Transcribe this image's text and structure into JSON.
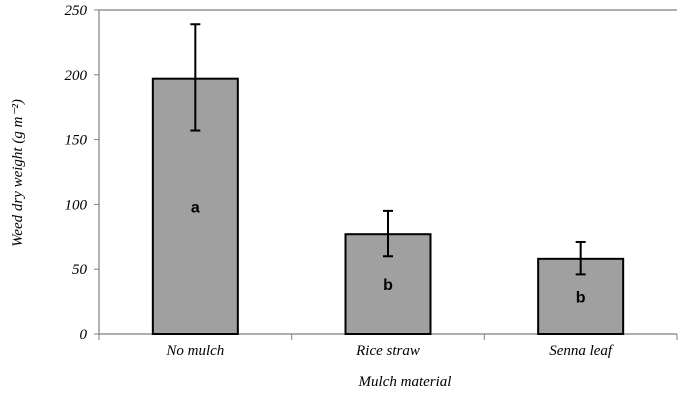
{
  "chart_data": {
    "type": "bar",
    "categories": [
      "No mulch",
      "Rice straw",
      "Senna leaf"
    ],
    "values": [
      197,
      77,
      58
    ],
    "error_upper": [
      239,
      95,
      71
    ],
    "error_lower": [
      157,
      60,
      46
    ],
    "significance_labels": [
      "a",
      "b",
      "b"
    ],
    "title": "",
    "xlabel": "Mulch material",
    "ylabel": "Weed dry weight (g m⁻²)",
    "ylim": [
      0,
      250
    ],
    "yticks": [
      "0",
      "50",
      "100",
      "150",
      "200",
      "250"
    ],
    "grid": false,
    "legend": "none",
    "colors": {
      "bar_fill": "#a0a0a0",
      "bar_edge": "#000000",
      "axis": "#7f7f7f"
    }
  }
}
